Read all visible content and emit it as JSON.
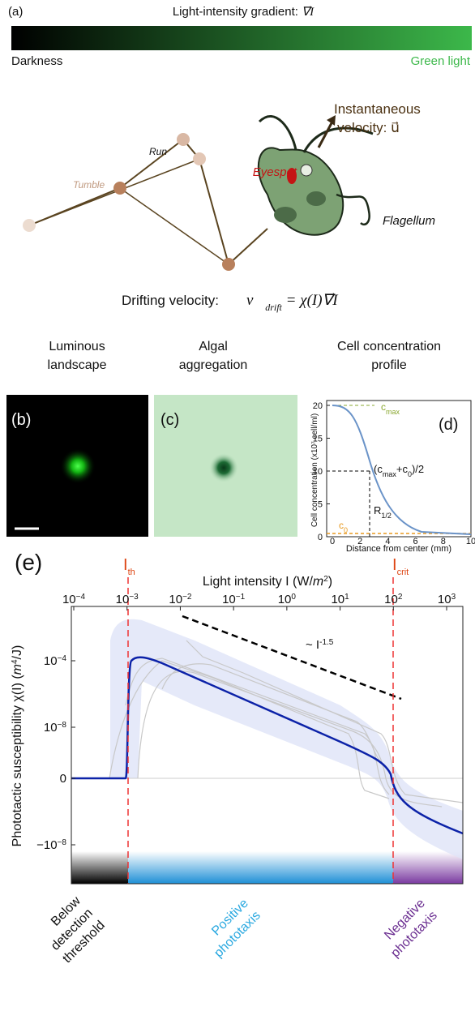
{
  "panels": {
    "a": {
      "label": "(a)",
      "title": "Light-intensity gradient: ",
      "title_formula": "∇⃗I",
      "left_label": "Darkness",
      "right_label": "Green light",
      "run": "Run",
      "tumble": "Tumble",
      "eyespot": "Eyespot",
      "velocity_line1": "Instantaneous",
      "velocity_line2": "velocity: u⃗",
      "flagellum": "Flagellum",
      "drift_label": "Drifting velocity:",
      "drift_v": "v⃗",
      "drift_sub": "drift",
      "drift_rest": " = χ(I)∇⃗I"
    },
    "b": {
      "label": "(b)",
      "title_line1": "Luminous",
      "title_line2": "landscape"
    },
    "c": {
      "label": "(c)",
      "title_line1": "Algal",
      "title_line2": "aggregation"
    },
    "d": {
      "label": "(d)",
      "title_line1": "Cell concentration",
      "title_line2": "profile",
      "y_axis": "Cell concentration (x10⁷ cell/ml)",
      "x_axis": "Distance from center (mm)",
      "yticks": [
        "0",
        "5",
        "10",
        "15",
        "20"
      ],
      "xticks": [
        "0",
        "2",
        "4",
        "6",
        "8",
        "10"
      ],
      "cmax": {
        "main": "c",
        "sub": "max"
      },
      "c0": {
        "main": "c",
        "sub": "0"
      },
      "half": {
        "open": "(c",
        "sub1": "max",
        "mid": "+c",
        "sub2": "0",
        "close": ")/2"
      },
      "r_half": {
        "main": "R",
        "sub": "1/2"
      }
    },
    "e": {
      "label": "(e)",
      "x_axis": "Light intensity I (W/",
      "x_axis_unit": "m",
      "x_axis_exp": "2",
      "x_axis_close": ")",
      "top_ticks": [
        {
          "base": "10",
          "exp": "−4"
        },
        {
          "base": "10",
          "exp": "−3"
        },
        {
          "base": "10",
          "exp": "−2"
        },
        {
          "base": "10",
          "exp": "−1"
        },
        {
          "base": "10",
          "exp": "0"
        },
        {
          "base": "10",
          "exp": "1"
        },
        {
          "base": "10",
          "exp": "2"
        },
        {
          "base": "10",
          "exp": "3"
        }
      ],
      "y_ticks": [
        {
          "base": "10",
          "exp": "−4"
        },
        {
          "base": "10",
          "exp": "−8"
        },
        {
          "base": "0",
          "exp": ""
        },
        {
          "base": "−10",
          "exp": "−8"
        }
      ],
      "y_axis": "Phototactic susceptibility χ(I) (",
      "y_axis_unit": "m",
      "y_axis_exp": "4",
      "y_axis_close": "/J)",
      "threshold": {
        "main": "I",
        "sub": "th"
      },
      "critical": {
        "main": "I",
        "sub": "crit"
      },
      "slope": {
        "main": "~ I",
        "exp": "-1.5"
      },
      "below": [
        "Below",
        "detection",
        "threshold"
      ],
      "positive": [
        "Positive",
        "phototaxis"
      ],
      "negative": [
        "Negative",
        "phototaxis"
      ]
    }
  }
}
